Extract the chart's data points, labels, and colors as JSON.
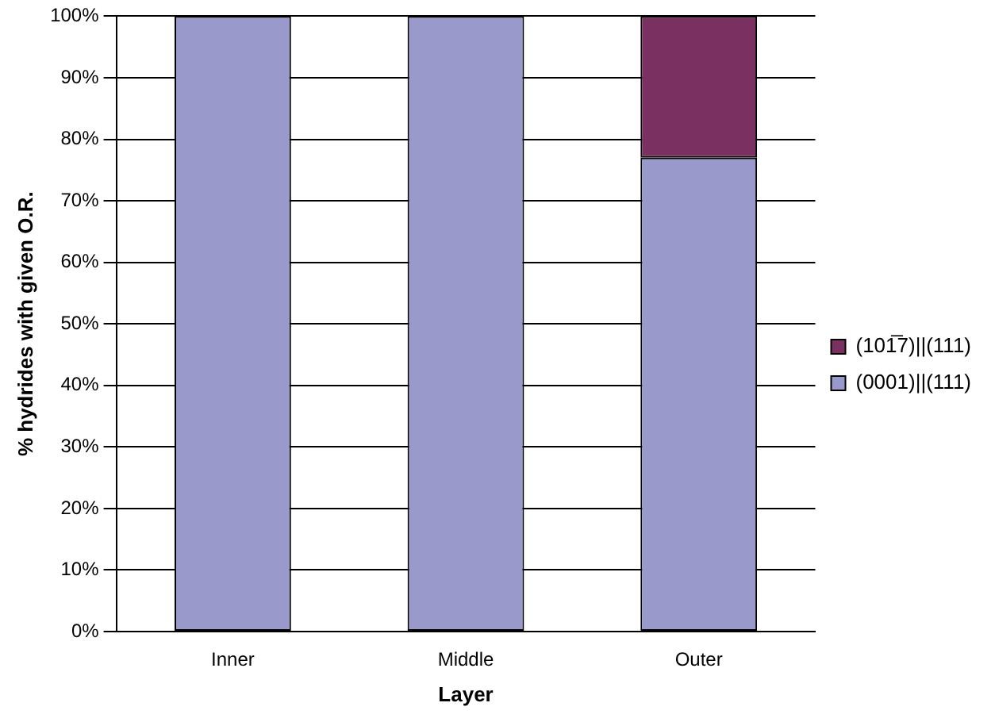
{
  "chart_data": {
    "type": "bar",
    "stacked": true,
    "xlabel": "Layer",
    "ylabel": "% hydrides with given O.R.",
    "categories": [
      "Inner",
      "Middle",
      "Outer"
    ],
    "series": [
      {
        "name": "(0001)||(111)",
        "color": "#9999cc",
        "values": [
          100,
          100,
          77
        ]
      },
      {
        "name": "(101̅7)||(111)",
        "color": "#7a3162",
        "values": [
          0,
          0,
          23
        ]
      }
    ],
    "ylim": [
      0,
      100
    ],
    "yticks": [
      {
        "value": 0,
        "label": "0%"
      },
      {
        "value": 10,
        "label": "10%"
      },
      {
        "value": 20,
        "label": "20%"
      },
      {
        "value": 30,
        "label": "30%"
      },
      {
        "value": 40,
        "label": "40%"
      },
      {
        "value": 50,
        "label": "50%"
      },
      {
        "value": 60,
        "label": "60%"
      },
      {
        "value": 70,
        "label": "70%"
      },
      {
        "value": 80,
        "label": "80%"
      },
      {
        "value": 90,
        "label": "90%"
      },
      {
        "value": 100,
        "label": "100%"
      }
    ],
    "grid": "y",
    "legend": "right"
  }
}
